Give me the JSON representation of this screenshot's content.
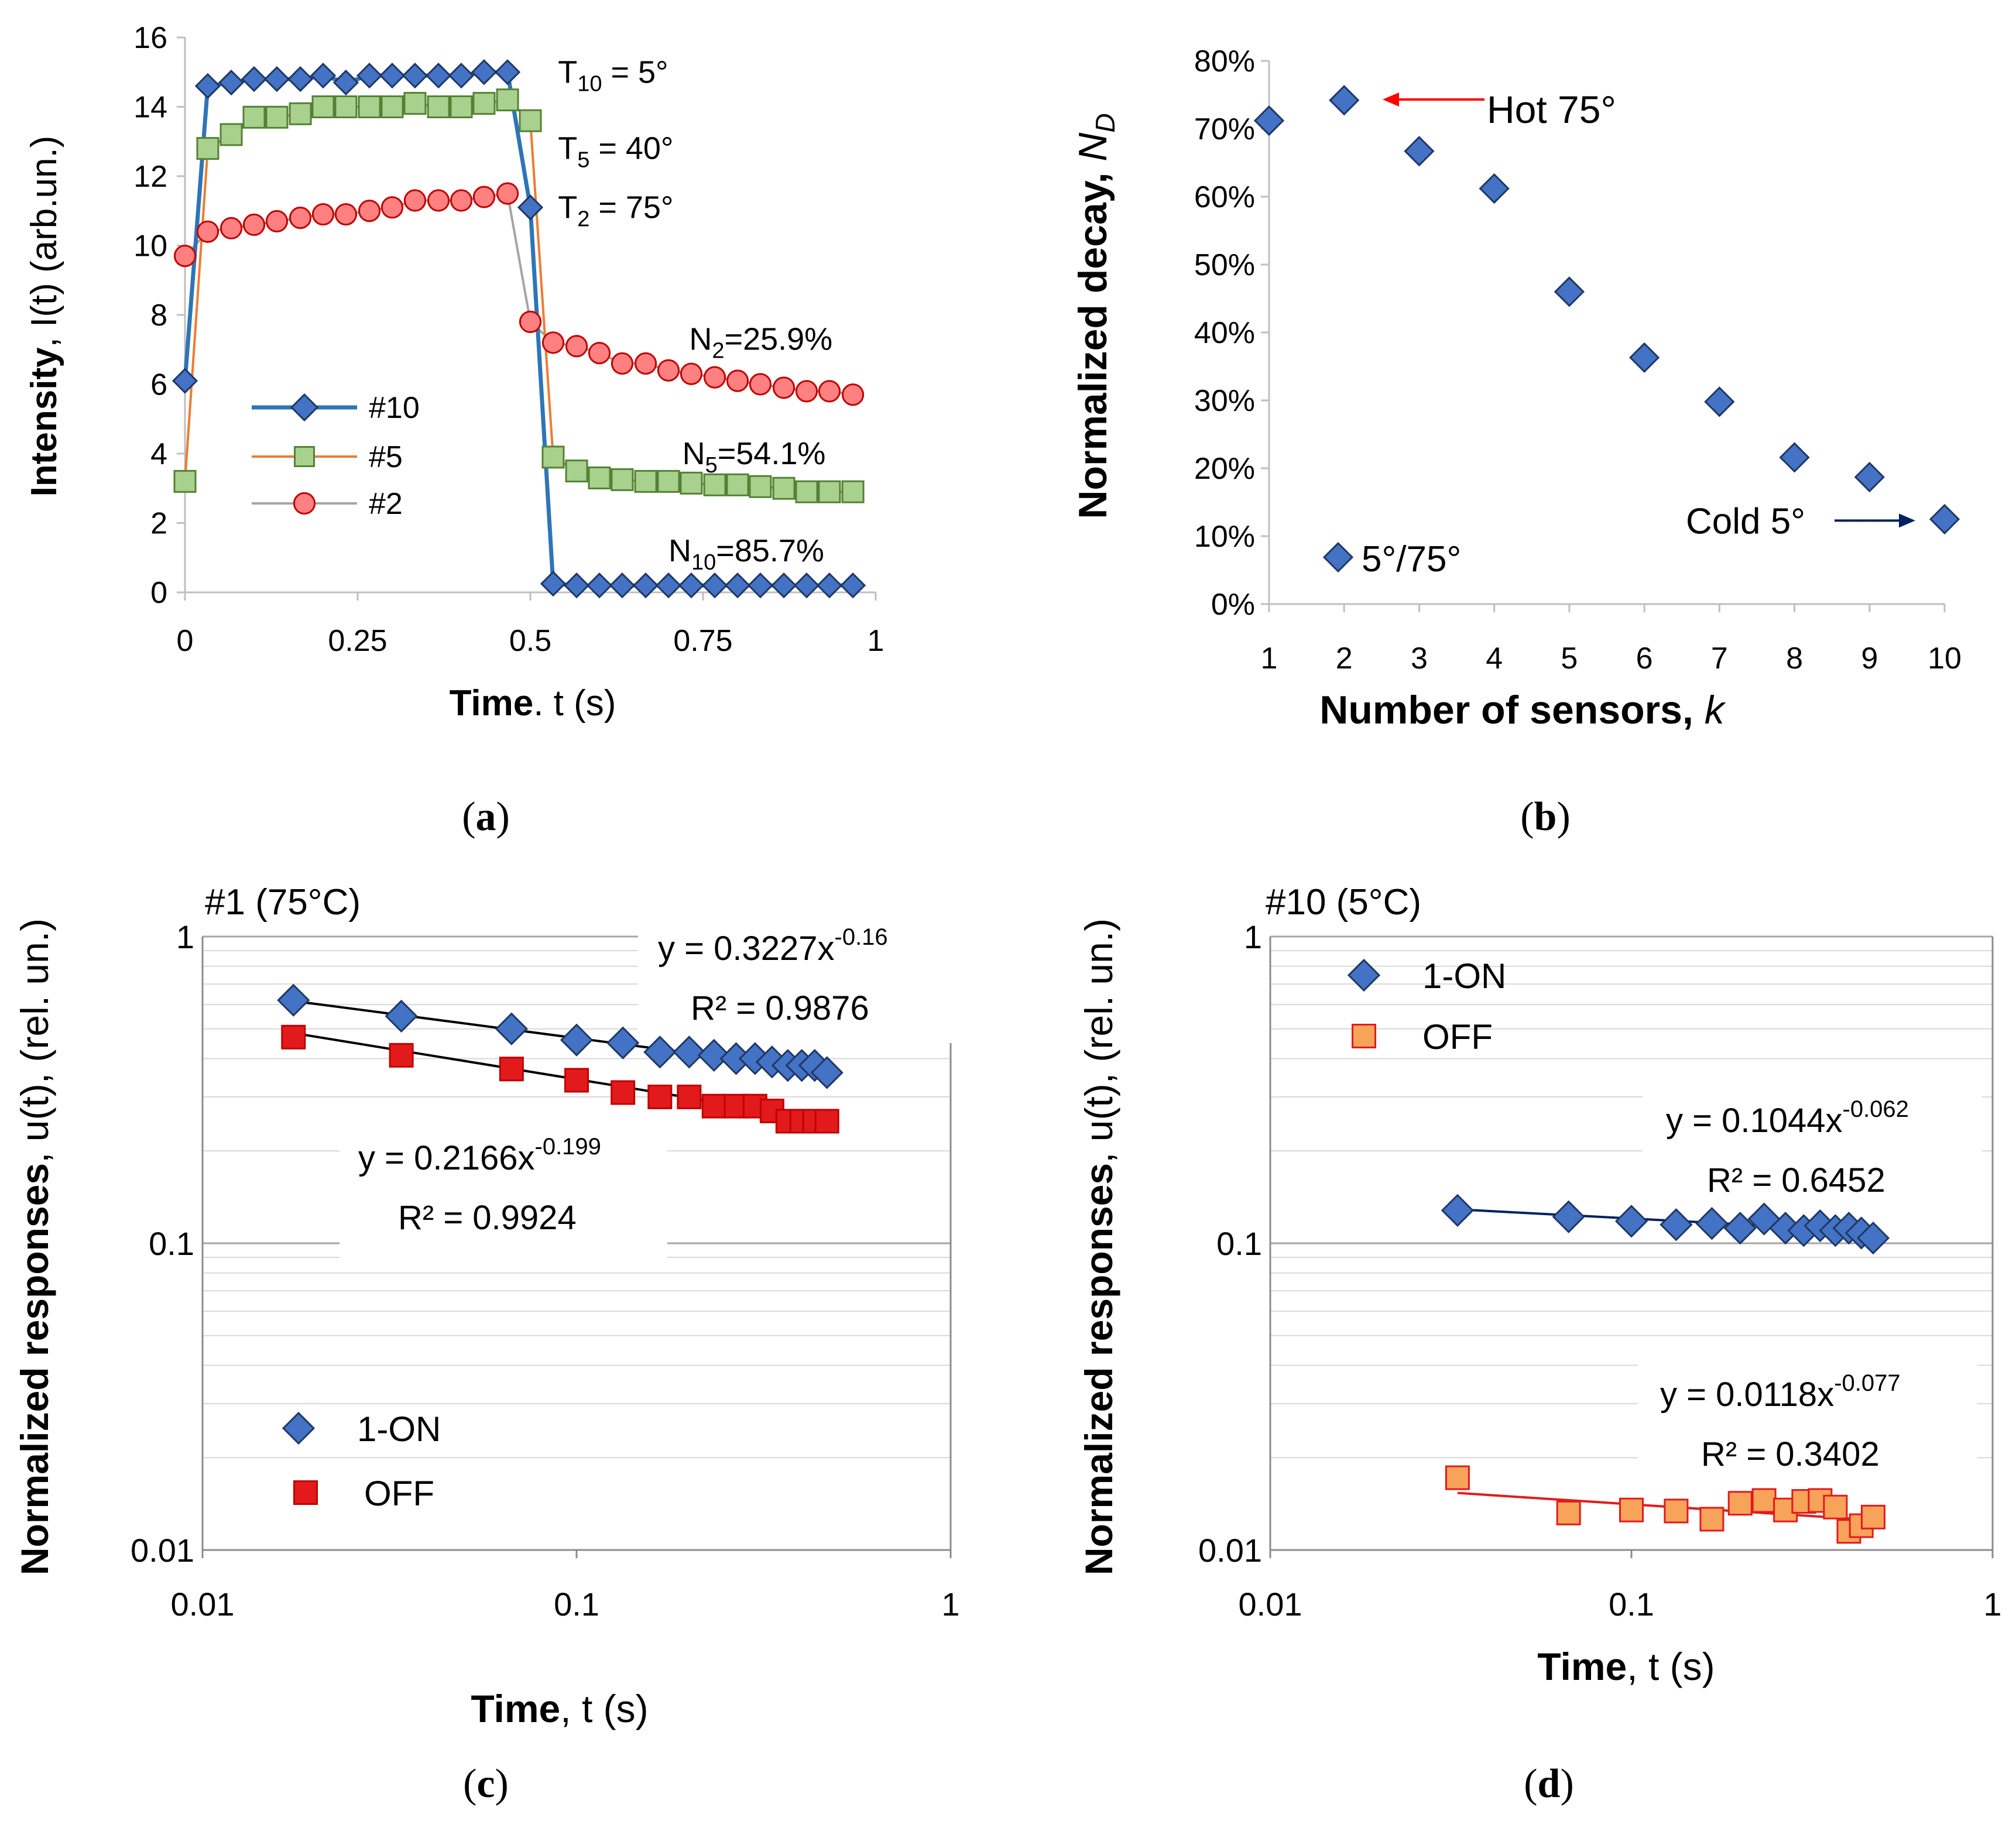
{
  "chart_data": [
    {
      "id": "a",
      "type": "line",
      "panel_label": "a",
      "xlabel_bold": "Time",
      "xlabel_rest": ". t (s)",
      "ylabel_bold": "Intensity",
      "ylabel_rest": ", I(t) (arb.un.)",
      "xlim": [
        0,
        1
      ],
      "ylim": [
        0,
        16
      ],
      "xticks": [
        0,
        0.25,
        0.5,
        0.75,
        1
      ],
      "xtick_labels": [
        "0",
        "0.25",
        "0.5",
        "0.75",
        "1"
      ],
      "yticks": [
        0,
        2,
        4,
        6,
        8,
        10,
        12,
        14,
        16
      ],
      "ytick_labels": [
        "0",
        "2",
        "4",
        "6",
        "8",
        "10",
        "12",
        "14",
        "16"
      ],
      "legend": [
        "#10",
        "#5",
        "#2"
      ],
      "series": [
        {
          "name": "#10",
          "color": "#2e75b6",
          "marker_fill": "#4472c4",
          "marker_stroke": "#1f3864",
          "marker": "diamond",
          "x": [
            0,
            0.033,
            0.067,
            0.1,
            0.133,
            0.167,
            0.2,
            0.233,
            0.267,
            0.3,
            0.333,
            0.367,
            0.4,
            0.433,
            0.467,
            0.5,
            0.533,
            0.567,
            0.6,
            0.633,
            0.667,
            0.7,
            0.733,
            0.767,
            0.8,
            0.833,
            0.867,
            0.9,
            0.933,
            0.967
          ],
          "y": [
            6.1,
            14.6,
            14.7,
            14.8,
            14.8,
            14.8,
            14.9,
            14.7,
            14.9,
            14.9,
            14.9,
            14.9,
            14.9,
            15.0,
            15.0,
            11.1,
            0.25,
            0.2,
            0.2,
            0.2,
            0.2,
            0.2,
            0.2,
            0.2,
            0.2,
            0.2,
            0.2,
            0.2,
            0.2,
            0.2
          ]
        },
        {
          "name": "#5",
          "color": "#ed7d31",
          "marker_fill": "#a9d18e",
          "marker_stroke": "#548235",
          "marker": "square",
          "x": [
            0,
            0.033,
            0.067,
            0.1,
            0.133,
            0.167,
            0.2,
            0.233,
            0.267,
            0.3,
            0.333,
            0.367,
            0.4,
            0.433,
            0.467,
            0.5,
            0.533,
            0.567,
            0.6,
            0.633,
            0.667,
            0.7,
            0.733,
            0.767,
            0.8,
            0.833,
            0.867,
            0.9,
            0.933,
            0.967
          ],
          "y": [
            3.2,
            12.8,
            13.2,
            13.7,
            13.7,
            13.8,
            14.0,
            14.0,
            14.0,
            14.0,
            14.1,
            14.0,
            14.0,
            14.1,
            14.2,
            13.6,
            3.9,
            3.5,
            3.3,
            3.25,
            3.2,
            3.2,
            3.15,
            3.1,
            3.1,
            3.05,
            3.0,
            2.9,
            2.9,
            2.9
          ]
        },
        {
          "name": "#2",
          "color": "#a5a5a5",
          "marker_fill": "#ff8080",
          "marker_stroke": "#c00000",
          "marker": "circle",
          "x": [
            0,
            0.033,
            0.067,
            0.1,
            0.133,
            0.167,
            0.2,
            0.233,
            0.267,
            0.3,
            0.333,
            0.367,
            0.4,
            0.433,
            0.467,
            0.5,
            0.533,
            0.567,
            0.6,
            0.633,
            0.667,
            0.7,
            0.733,
            0.767,
            0.8,
            0.833,
            0.867,
            0.9,
            0.933,
            0.967
          ],
          "y": [
            9.7,
            10.4,
            10.5,
            10.6,
            10.7,
            10.8,
            10.9,
            10.9,
            11.0,
            11.1,
            11.3,
            11.3,
            11.3,
            11.4,
            11.5,
            7.8,
            7.2,
            7.1,
            6.9,
            6.6,
            6.6,
            6.4,
            6.3,
            6.2,
            6.1,
            6.0,
            5.9,
            5.8,
            5.8,
            5.7
          ]
        }
      ],
      "annotations": [
        {
          "base": "T",
          "sub": "10",
          "rest": " = 5°",
          "x": 0.54,
          "y": 15.0
        },
        {
          "base": "T",
          "sub": "5",
          "rest": " = 40°",
          "x": 0.54,
          "y": 12.8
        },
        {
          "base": "T",
          "sub": "2",
          "rest": " = 75°",
          "x": 0.54,
          "y": 11.1
        },
        {
          "base": "N",
          "sub": "2",
          "rest": "=25.9%",
          "x": 0.73,
          "y": 7.3
        },
        {
          "base": "N",
          "sub": "5",
          "rest": "=54.1%",
          "x": 0.72,
          "y": 4.0
        },
        {
          "base": "N",
          "sub": "10",
          "rest": "=85.7%",
          "x": 0.7,
          "y": 1.2
        }
      ]
    },
    {
      "id": "b",
      "type": "scatter",
      "panel_label": "b",
      "xlabel_bold": "Number of  sensors, ",
      "xlabel_italic": "k",
      "ylabel_bold": "Normalized decay, ",
      "ylabel_italic": "N",
      "ylabel_sub": "D",
      "xlim": [
        1,
        10
      ],
      "ylim": [
        0,
        0.8
      ],
      "xticks": [
        1,
        2,
        3,
        4,
        5,
        6,
        7,
        8,
        9,
        10
      ],
      "xtick_labels": [
        "1",
        "2",
        "3",
        "4",
        "5",
        "6",
        "7",
        "8",
        "9",
        "10"
      ],
      "yticks": [
        0,
        0.1,
        0.2,
        0.3,
        0.4,
        0.5,
        0.6,
        0.7,
        0.8
      ],
      "ytick_labels": [
        "0%",
        "10%",
        "20%",
        "30%",
        "40%",
        "50%",
        "60%",
        "70%",
        "80%"
      ],
      "legend": [
        "5°/75°"
      ],
      "series": [
        {
          "name": "5°/75°",
          "marker_fill": "#4472c4",
          "marker_stroke": "#1f3864",
          "x": [
            1,
            2,
            3,
            4,
            5,
            6,
            7,
            8,
            9,
            10
          ],
          "y": [
            0.712,
            0.742,
            0.667,
            0.612,
            0.46,
            0.363,
            0.298,
            0.216,
            0.187,
            0.125
          ]
        }
      ],
      "annotations": [
        {
          "text": "Hot 75°",
          "color": "#ff0000",
          "arrow_from": [
            3.0,
            0.75
          ],
          "arrow_to": [
            2.5,
            0.75
          ]
        },
        {
          "text": "Cold 5°",
          "color": "#002060",
          "arrow_from": [
            8.5,
            0.12
          ],
          "arrow_to": [
            9.6,
            0.12
          ]
        }
      ]
    },
    {
      "id": "c",
      "type": "scatter",
      "panel_label": "c",
      "title": "#1 (75°C)",
      "xlabel_bold": "Time",
      "xlabel_rest": ", t (s)",
      "ylabel_bold": "Normalized responses",
      "ylabel_rest": ", u(t), (rel. un.)",
      "xscale": "log",
      "yscale": "log",
      "xlim": [
        0.01,
        1
      ],
      "ylim": [
        0.01,
        1
      ],
      "xticks": [
        0.01,
        0.1,
        1
      ],
      "xtick_labels": [
        "0.01",
        "0.1",
        "1"
      ],
      "yticks": [
        0.01,
        0.1,
        1
      ],
      "ytick_labels": [
        "0.01",
        "0.1",
        "1"
      ],
      "legend": [
        "1-ON",
        "OFF"
      ],
      "series": [
        {
          "name": "1-ON",
          "marker": "diamond",
          "marker_fill": "#4472c4",
          "marker_stroke": "#1f3864",
          "x": [
            0.0175,
            0.034,
            0.067,
            0.1,
            0.133,
            0.167,
            0.2,
            0.233,
            0.267,
            0.3,
            0.333,
            0.367,
            0.4,
            0.433,
            0.467
          ],
          "y": [
            0.62,
            0.55,
            0.5,
            0.46,
            0.45,
            0.42,
            0.42,
            0.41,
            0.4,
            0.4,
            0.39,
            0.38,
            0.38,
            0.38,
            0.36
          ],
          "fit_a": 0.3227,
          "fit_b": -0.16,
          "fit_color": "#000000"
        },
        {
          "name": "OFF",
          "marker": "square",
          "marker_fill": "#e31a1c",
          "marker_stroke": "#c00000",
          "x": [
            0.0175,
            0.034,
            0.067,
            0.1,
            0.133,
            0.167,
            0.2,
            0.233,
            0.267,
            0.3,
            0.333,
            0.367,
            0.4,
            0.433,
            0.467
          ],
          "y": [
            0.47,
            0.41,
            0.37,
            0.34,
            0.31,
            0.3,
            0.3,
            0.28,
            0.28,
            0.28,
            0.27,
            0.25,
            0.25,
            0.25,
            0.25
          ],
          "fit_a": 0.2166,
          "fit_b": -0.199,
          "fit_color": "#000000"
        }
      ],
      "equations": [
        {
          "base": "y = 0.3227x",
          "exp": "-0.16",
          "r2": "R² = 0.9876"
        },
        {
          "base": "y = 0.2166x",
          "exp": "-0.199",
          "r2": "R² = 0.9924"
        }
      ]
    },
    {
      "id": "d",
      "type": "scatter",
      "panel_label": "d",
      "title": "#10 (5°C)",
      "xlabel_bold": "Time",
      "xlabel_rest": ", t (s)",
      "ylabel_bold": "Normalized responses",
      "ylabel_rest": ", u(t), (rel. un.)",
      "xscale": "log",
      "yscale": "log",
      "xlim": [
        0.01,
        1
      ],
      "ylim": [
        0.01,
        1
      ],
      "xticks": [
        0.01,
        0.1,
        1
      ],
      "xtick_labels": [
        "0.01",
        "0.1",
        "1"
      ],
      "yticks": [
        0.01,
        0.1,
        1
      ],
      "ytick_labels": [
        "0.01",
        "0.1",
        "1"
      ],
      "legend": [
        "1-ON",
        "OFF"
      ],
      "series": [
        {
          "name": "1-ON",
          "marker": "diamond",
          "marker_fill": "#4472c4",
          "marker_stroke": "#1f3864",
          "x": [
            0.033,
            0.067,
            0.1,
            0.133,
            0.167,
            0.2,
            0.233,
            0.267,
            0.3,
            0.333,
            0.367,
            0.4,
            0.433,
            0.467
          ],
          "y": [
            0.128,
            0.122,
            0.118,
            0.115,
            0.116,
            0.112,
            0.12,
            0.112,
            0.11,
            0.114,
            0.11,
            0.112,
            0.108,
            0.104
          ],
          "fit_a": 0.1044,
          "fit_b": -0.062,
          "fit_color": "#002060"
        },
        {
          "name": "OFF",
          "marker": "square",
          "marker_fill": "#f8a35a",
          "marker_stroke": "#e31a1c",
          "x": [
            0.033,
            0.067,
            0.1,
            0.133,
            0.167,
            0.2,
            0.233,
            0.267,
            0.3,
            0.333,
            0.367,
            0.4,
            0.433,
            0.467
          ],
          "y": [
            0.0172,
            0.0132,
            0.0135,
            0.0134,
            0.0126,
            0.0142,
            0.0145,
            0.0135,
            0.0144,
            0.0145,
            0.0138,
            0.0115,
            0.012,
            0.0128
          ],
          "fit_a": 0.0118,
          "fit_b": -0.077,
          "fit_color": "#e31a1c"
        }
      ],
      "equations": [
        {
          "base": "y = 0.1044x",
          "exp": "-0.062",
          "r2": "R² = 0.6452"
        },
        {
          "base": "y = 0.0118x",
          "exp": "-0.077",
          "r2": "R² = 0.3402"
        }
      ]
    }
  ]
}
